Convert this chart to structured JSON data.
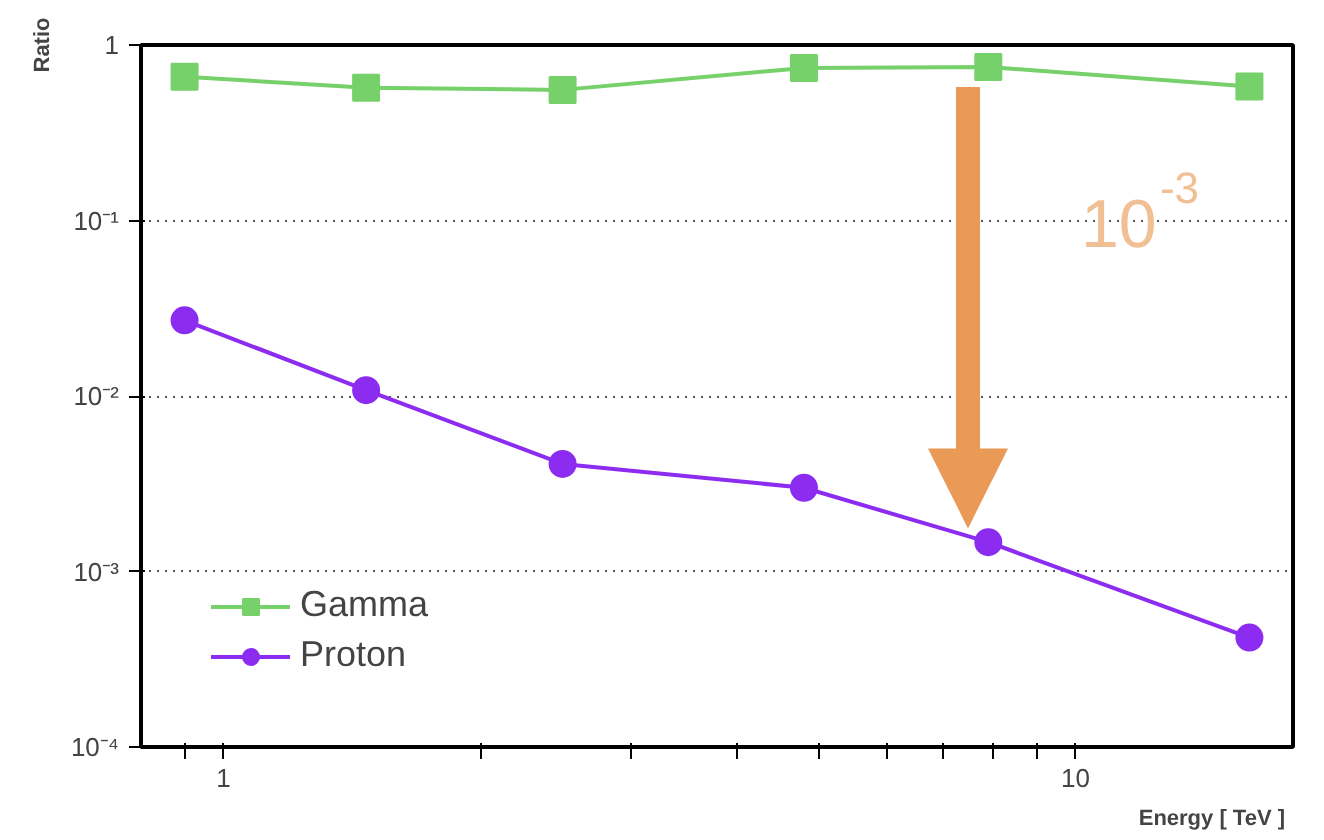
{
  "chart_data": {
    "type": "line",
    "xlabel": "Energy [ TeV ]",
    "ylabel": "Ratio",
    "log": "xy",
    "grid": "y",
    "legend": "bottom left",
    "x": [
      0.9,
      1.47,
      2.5,
      4.8,
      7.9,
      16.0
    ],
    "series": [
      {
        "name": "Gamma",
        "color": "#77d16b",
        "marker": "square",
        "values": [
          0.66,
          0.57,
          0.555,
          0.74,
          0.75,
          0.58
        ]
      },
      {
        "name": "Proton",
        "color": "#8c2cf0",
        "marker": "circle",
        "values": [
          0.027,
          0.0108,
          0.0041,
          0.003,
          0.00147,
          0.00042
        ]
      }
    ],
    "xlim": [
      0.8,
      18
    ],
    "ylim": [
      0.0001,
      1
    ],
    "xticks": [
      {
        "value": 0.9,
        "label": null
      },
      1,
      {
        "value": 2,
        "label": null
      },
      {
        "value": 3,
        "label": null
      },
      {
        "value": 4,
        "label": null
      },
      {
        "value": 5,
        "label": null
      },
      {
        "value": 6,
        "label": null
      },
      {
        "value": 7,
        "label": null
      },
      {
        "value": 8,
        "label": null
      },
      {
        "value": 9,
        "label": null
      },
      10
    ],
    "yticks": [
      {
        "value": 0.0001,
        "label": "10⁻⁴"
      },
      {
        "value": 0.001,
        "label": "10⁻³"
      },
      {
        "value": 0.01,
        "label": "10⁻²"
      },
      {
        "value": 0.1,
        "label": "10⁻¹"
      },
      1
    ],
    "annotations": [
      "10$^{-3}$"
    ]
  }
}
